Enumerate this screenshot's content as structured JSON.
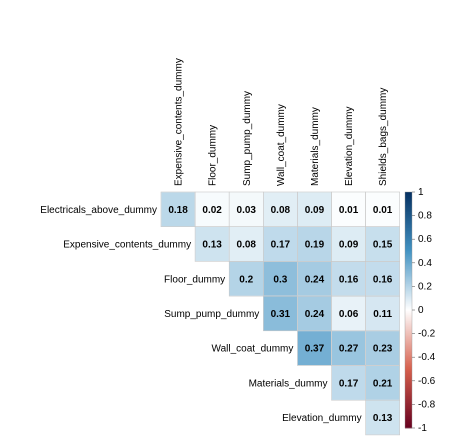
{
  "chart_data": {
    "type": "heatmap",
    "variant": "correlation-upper-triangle",
    "rows": [
      "Electricals_above_dummy",
      "Expensive_contents_dummy",
      "Floor_dummy",
      "Sump_pump_dummy",
      "Wall_coat_dummy",
      "Materials_dummy",
      "Elevation_dummy"
    ],
    "columns": [
      "Expensive_contents_dummy",
      "Floor_dummy",
      "Sump_pump_dummy",
      "Wall_coat_dummy",
      "Materials_dummy",
      "Elevation_dummy",
      "Shields_bags_dummy"
    ],
    "values": [
      [
        0.18,
        0.02,
        0.03,
        0.08,
        0.09,
        0.01,
        0.01
      ],
      [
        null,
        0.13,
        0.08,
        0.17,
        0.19,
        0.09,
        0.15
      ],
      [
        null,
        null,
        0.2,
        0.3,
        0.24,
        0.16,
        0.16
      ],
      [
        null,
        null,
        null,
        0.31,
        0.24,
        0.06,
        0.11
      ],
      [
        null,
        null,
        null,
        null,
        0.37,
        0.27,
        0.23
      ],
      [
        null,
        null,
        null,
        null,
        null,
        0.17,
        0.21
      ],
      [
        null,
        null,
        null,
        null,
        null,
        null,
        0.13
      ]
    ],
    "color_scale": {
      "range": [
        -1,
        1
      ],
      "ticks": [
        1,
        0.8,
        0.6,
        0.4,
        0.2,
        0,
        -0.2,
        -0.4,
        -0.6,
        -0.8,
        -1
      ],
      "colors": {
        "negative": "#67001F",
        "neutral": "#FFFFFF",
        "positive": "#053061"
      }
    },
    "legend_placement": "right"
  }
}
